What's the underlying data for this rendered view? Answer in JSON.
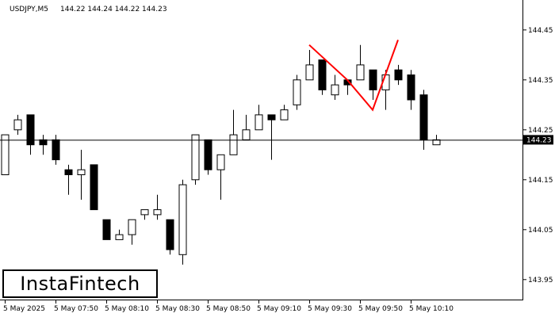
{
  "header": {
    "symbol": "USDJPY,M5",
    "ohlc": "144.22 144.24 144.22 144.23"
  },
  "logo": {
    "text": "InstaFintech"
  },
  "colors": {
    "pattern": "#ff0000",
    "bull": "#ffffff",
    "bear": "#000000",
    "line": "#000000"
  },
  "chart_data": {
    "type": "candlestick",
    "title": "USDJPY,M5",
    "current_price": 144.23,
    "current_price_label": "144.23",
    "ylim": [
      143.91,
      144.51
    ],
    "y_ticks": [
      "144.45",
      "144.35",
      "144.25",
      "144.15",
      "144.05",
      "143.95"
    ],
    "x_ticks": [
      {
        "index": 0,
        "label": "5 May 2025"
      },
      {
        "index": 4,
        "label": "5 May 07:50"
      },
      {
        "index": 8,
        "label": "5 May 08:10"
      },
      {
        "index": 12,
        "label": "5 May 08:30"
      },
      {
        "index": 16,
        "label": "5 May 08:50"
      },
      {
        "index": 20,
        "label": "5 May 09:10"
      },
      {
        "index": 24,
        "label": "5 May 09:30"
      },
      {
        "index": 28,
        "label": "5 May 09:50"
      },
      {
        "index": 32,
        "label": "5 May 10:10"
      }
    ],
    "candles": [
      {
        "o": 144.16,
        "h": 144.24,
        "l": 144.16,
        "c": 144.24
      },
      {
        "o": 144.25,
        "h": 144.28,
        "l": 144.24,
        "c": 144.27
      },
      {
        "o": 144.28,
        "h": 144.28,
        "l": 144.2,
        "c": 144.22
      },
      {
        "o": 144.23,
        "h": 144.24,
        "l": 144.2,
        "c": 144.22
      },
      {
        "o": 144.23,
        "h": 144.24,
        "l": 144.18,
        "c": 144.19
      },
      {
        "o": 144.17,
        "h": 144.18,
        "l": 144.12,
        "c": 144.16
      },
      {
        "o": 144.16,
        "h": 144.21,
        "l": 144.11,
        "c": 144.17
      },
      {
        "o": 144.18,
        "h": 144.18,
        "l": 144.09,
        "c": 144.09
      },
      {
        "o": 144.07,
        "h": 144.07,
        "l": 144.03,
        "c": 144.03
      },
      {
        "o": 144.03,
        "h": 144.05,
        "l": 144.03,
        "c": 144.04
      },
      {
        "o": 144.04,
        "h": 144.07,
        "l": 144.02,
        "c": 144.07
      },
      {
        "o": 144.08,
        "h": 144.09,
        "l": 144.07,
        "c": 144.09
      },
      {
        "o": 144.08,
        "h": 144.12,
        "l": 144.07,
        "c": 144.09
      },
      {
        "o": 144.07,
        "h": 144.07,
        "l": 144.0,
        "c": 144.01
      },
      {
        "o": 144.0,
        "h": 144.15,
        "l": 143.98,
        "c": 144.14
      },
      {
        "o": 144.15,
        "h": 144.24,
        "l": 144.14,
        "c": 144.24
      },
      {
        "o": 144.23,
        "h": 144.23,
        "l": 144.16,
        "c": 144.17
      },
      {
        "o": 144.17,
        "h": 144.2,
        "l": 144.11,
        "c": 144.2
      },
      {
        "o": 144.2,
        "h": 144.29,
        "l": 144.2,
        "c": 144.24
      },
      {
        "o": 144.23,
        "h": 144.28,
        "l": 144.23,
        "c": 144.25
      },
      {
        "o": 144.25,
        "h": 144.3,
        "l": 144.25,
        "c": 144.28
      },
      {
        "o": 144.28,
        "h": 144.28,
        "l": 144.19,
        "c": 144.27
      },
      {
        "o": 144.27,
        "h": 144.3,
        "l": 144.27,
        "c": 144.29
      },
      {
        "o": 144.3,
        "h": 144.36,
        "l": 144.29,
        "c": 144.35
      },
      {
        "o": 144.35,
        "h": 144.41,
        "l": 144.35,
        "c": 144.38
      },
      {
        "o": 144.39,
        "h": 144.39,
        "l": 144.32,
        "c": 144.33
      },
      {
        "o": 144.32,
        "h": 144.36,
        "l": 144.31,
        "c": 144.34
      },
      {
        "o": 144.35,
        "h": 144.35,
        "l": 144.32,
        "c": 144.34
      },
      {
        "o": 144.35,
        "h": 144.42,
        "l": 144.35,
        "c": 144.38
      },
      {
        "o": 144.37,
        "h": 144.37,
        "l": 144.31,
        "c": 144.33
      },
      {
        "o": 144.33,
        "h": 144.37,
        "l": 144.29,
        "c": 144.36
      },
      {
        "o": 144.37,
        "h": 144.38,
        "l": 144.34,
        "c": 144.35
      },
      {
        "o": 144.36,
        "h": 144.37,
        "l": 144.29,
        "c": 144.31
      },
      {
        "o": 144.32,
        "h": 144.33,
        "l": 144.21,
        "c": 144.23
      },
      {
        "o": 144.22,
        "h": 144.24,
        "l": 144.22,
        "c": 144.23
      }
    ],
    "pattern_points": [
      {
        "index": 24,
        "price": 144.42
      },
      {
        "index": 27,
        "price": 144.35
      },
      {
        "index": 29,
        "price": 144.29
      },
      {
        "index": 31,
        "price": 144.43
      }
    ]
  }
}
